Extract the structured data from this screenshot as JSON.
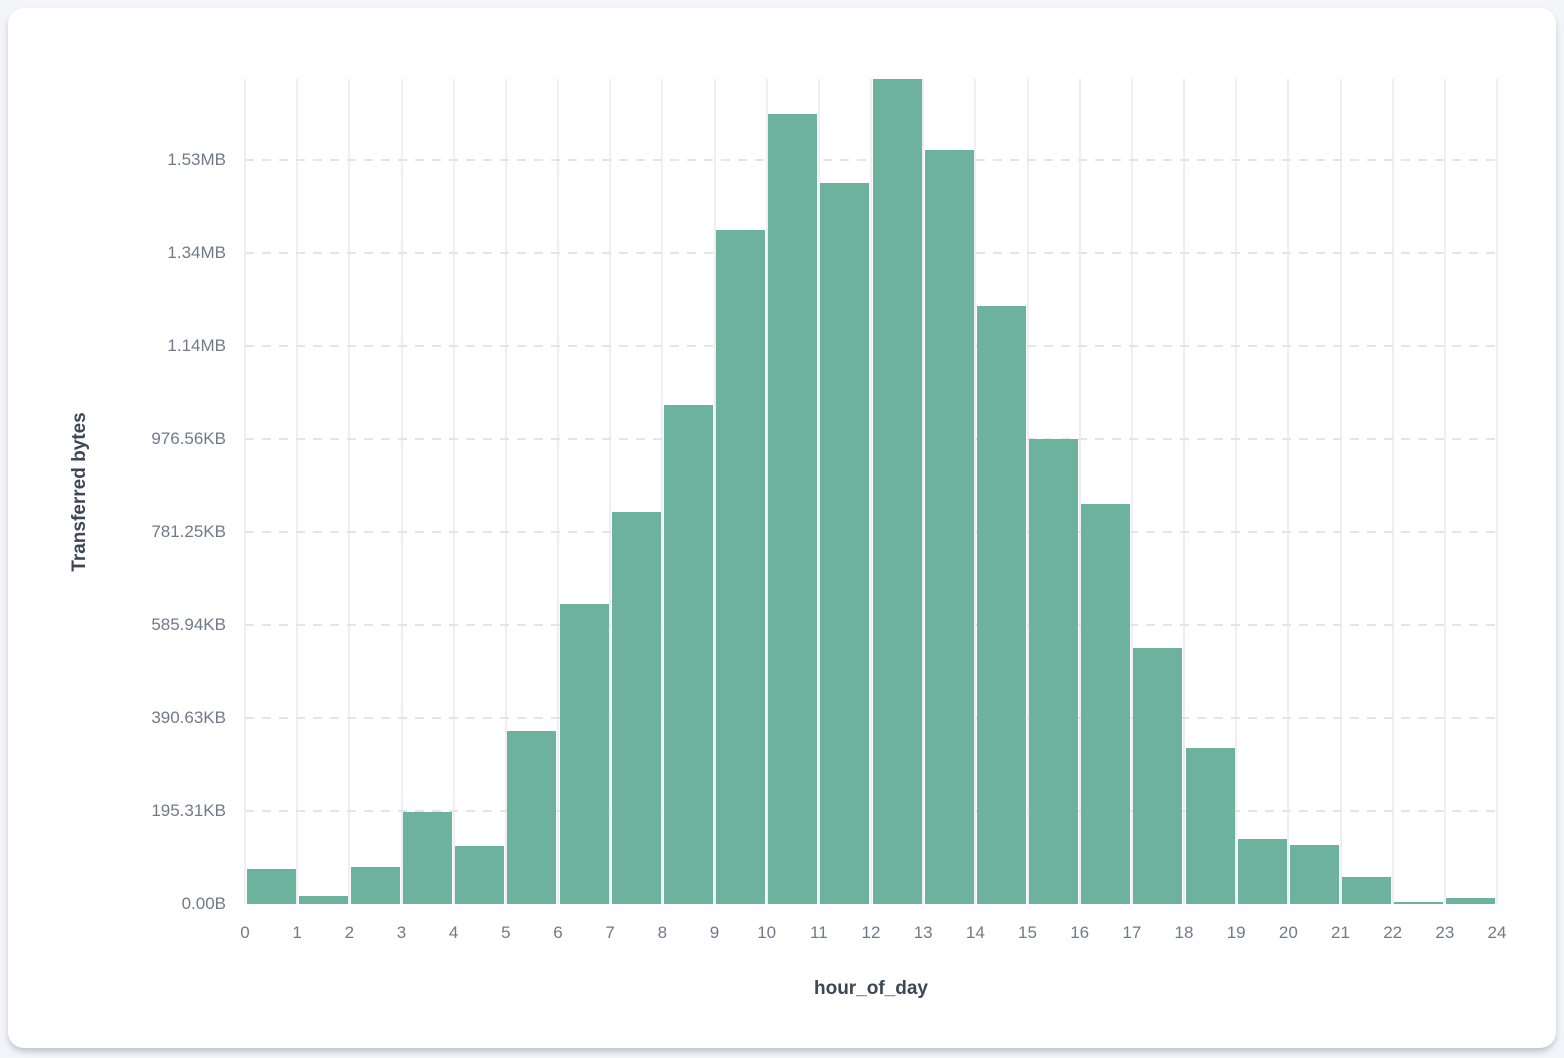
{
  "page": {
    "background_color": "#f3f5f8",
    "card_background_color": "#ffffff"
  },
  "chart_data": {
    "type": "bar",
    "subtype": "histogram",
    "title": "",
    "xlabel": "hour_of_day",
    "ylabel": "Transferred bytes",
    "legend": "none",
    "grid": {
      "horizontal": "dashed",
      "vertical": "solid"
    },
    "bar_color": "#6CB29C",
    "vertical_gridline_color": "#edeff3",
    "horizontal_gridline_color": "#e2e5ea",
    "tick_label_color": "#717a89",
    "axis_title_color": "#3d4656",
    "categories": [
      0,
      1,
      2,
      3,
      4,
      5,
      6,
      7,
      8,
      9,
      10,
      11,
      12,
      13,
      14,
      15,
      16,
      17,
      18,
      19,
      20,
      21,
      22,
      23
    ],
    "values_bytes": [
      75000,
      17000,
      80000,
      198000,
      125000,
      372000,
      645000,
      843000,
      1073000,
      1449000,
      1699000,
      1551000,
      1774000,
      1622000,
      1286000,
      1000000,
      860000,
      551000,
      335000,
      140000,
      127000,
      58000,
      4000,
      13000
    ],
    "x_tick_labels": [
      "0",
      "1",
      "2",
      "3",
      "4",
      "5",
      "6",
      "7",
      "8",
      "9",
      "10",
      "11",
      "12",
      "13",
      "14",
      "15",
      "16",
      "17",
      "18",
      "19",
      "20",
      "21",
      "22",
      "23",
      "24"
    ],
    "y_ticks": [
      {
        "bytes": 0,
        "label": "0.00B"
      },
      {
        "bytes": 200000,
        "label": "195.31KB"
      },
      {
        "bytes": 400000,
        "label": "390.63KB"
      },
      {
        "bytes": 600000,
        "label": "585.94KB"
      },
      {
        "bytes": 800000,
        "label": "781.25KB"
      },
      {
        "bytes": 1000000,
        "label": "976.56KB"
      },
      {
        "bytes": 1200000,
        "label": "1.14MB"
      },
      {
        "bytes": 1400000,
        "label": "1.34MB"
      },
      {
        "bytes": 1600000,
        "label": "1.53MB"
      }
    ],
    "ylim_bytes": [
      0,
      1774000
    ],
    "xlim": [
      0,
      24
    ]
  }
}
